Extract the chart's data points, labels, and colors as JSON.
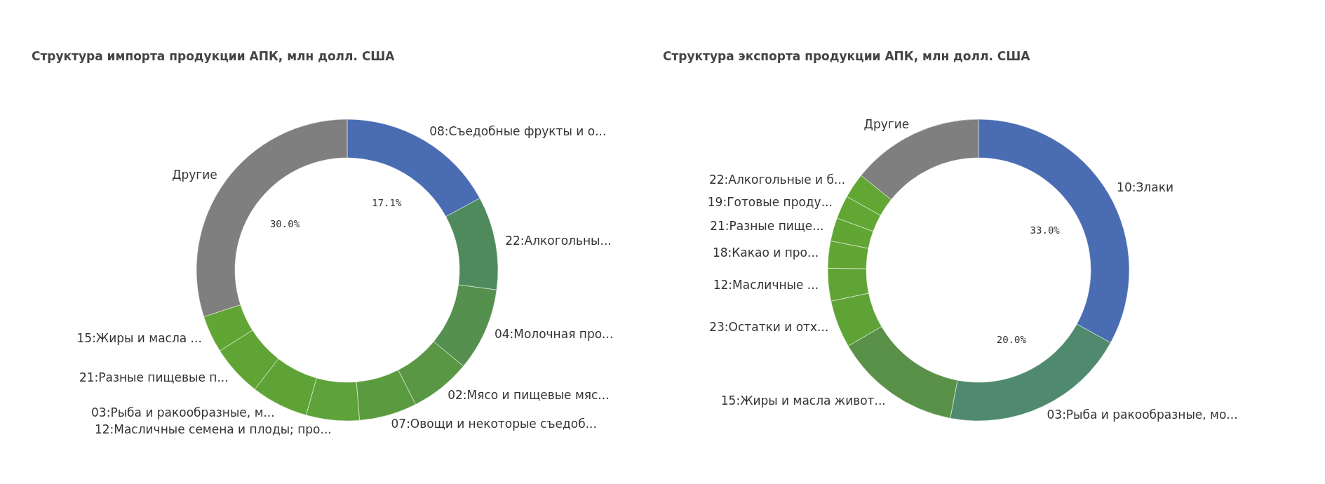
{
  "chart_data": [
    {
      "type": "donut",
      "title": "Структура импорта продукции АПК, млн долл. США",
      "categories": [
        "08:Съедобные фрукты и о...",
        "22:Алкогольны...",
        "04:Молочная про...",
        "02:Мясо и пищевые мяс...",
        "07:Овощи и некоторые съедоб...",
        "12:Масличные семена и плоды; про...",
        "03:Рыба и ракообразные, м...",
        "21:Разные пищевые п...",
        "15:Жиры и масла ...",
        "Другие"
      ],
      "values": [
        17.1,
        10.0,
        8.9,
        6.5,
        6.2,
        5.7,
        6.1,
        5.5,
        4.0,
        30.0
      ],
      "colors": [
        "#4a6cb3",
        "#4e8a5c",
        "#55904f",
        "#599745",
        "#5b9b3f",
        "#5ea23a",
        "#5fa337",
        "#60a436",
        "#61a534",
        "#7f7f7f"
      ],
      "value_labels": [
        "17.1%",
        null,
        null,
        null,
        null,
        null,
        null,
        null,
        null,
        "30.0%"
      ]
    },
    {
      "type": "donut",
      "title": "Структура экспорта продукции АПК, млн долл. США",
      "categories": [
        "10:Злаки",
        "03:Рыба и ракообразные, мо...",
        "15:Жиры и масла живот...",
        "23:Остатки и отх...",
        "12:Масличные ...",
        "18:Какао и про...",
        "21:Разные пище...",
        "19:Готовые проду...",
        "22:Алкогольные и б...",
        "Другие"
      ],
      "values": [
        33.0,
        20.0,
        13.6,
        5.1,
        3.5,
        2.9,
        2.5,
        2.5,
        2.7,
        14.2
      ],
      "colors": [
        "#4a6cb3",
        "#4f8a6e",
        "#5a9148",
        "#5fa337",
        "#60a436",
        "#61a535",
        "#61a534",
        "#62a633",
        "#62a733",
        "#7f7f7f"
      ],
      "value_labels": [
        "33.0%",
        "20.0%",
        null,
        null,
        null,
        null,
        null,
        null,
        null,
        null
      ]
    }
  ]
}
